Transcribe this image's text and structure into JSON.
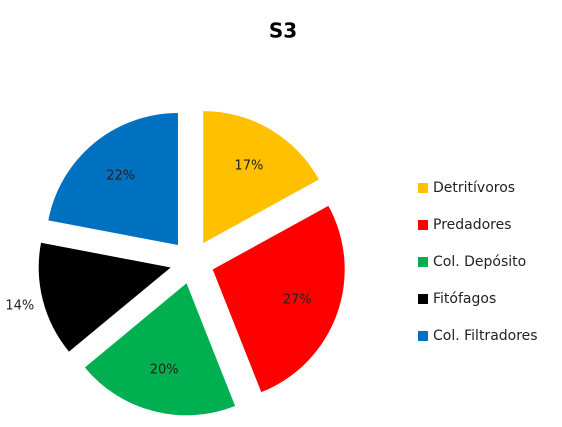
{
  "chart_data": {
    "type": "pie",
    "title": "S3",
    "categories": [
      "Detritívoros",
      "Predadores",
      "Col. Depósito",
      "Fitófagos",
      "Col. Filtradores"
    ],
    "values": [
      17,
      27,
      20,
      14,
      22
    ],
    "value_labels": [
      "17%",
      "27%",
      "20%",
      "14%",
      "22%"
    ],
    "colors": [
      "#FFC000",
      "#FF0000",
      "#00B050",
      "#000000",
      "#0070C0"
    ],
    "legend": "right"
  }
}
